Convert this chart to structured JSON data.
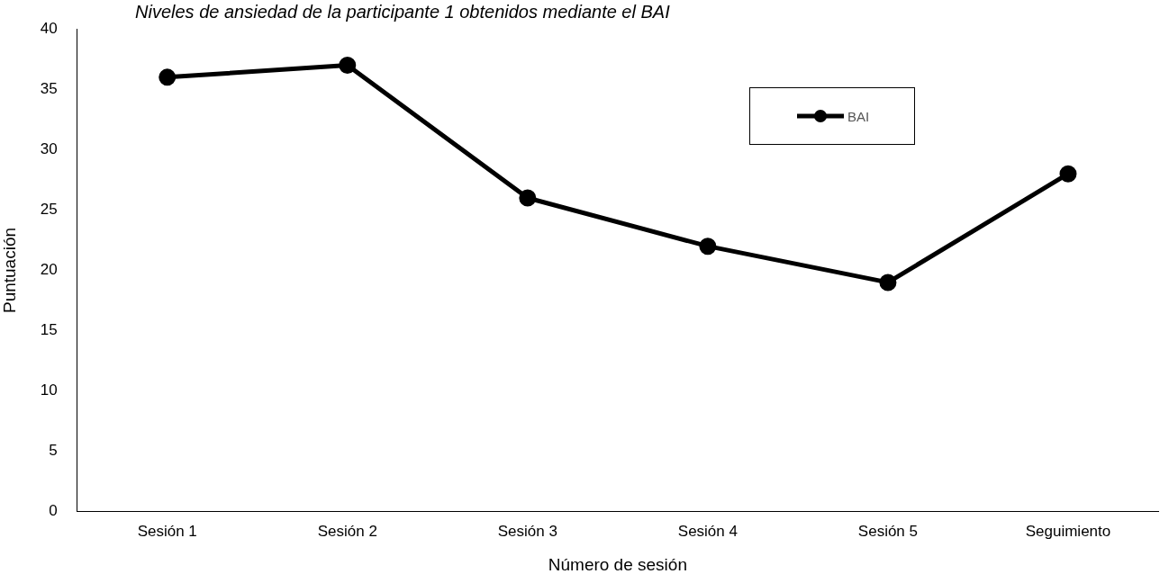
{
  "chart_data": {
    "type": "line",
    "title": "Niveles de ansiedad de la participante 1 obtenidos mediante el BAI",
    "xlabel": "Número de sesión",
    "ylabel": "Puntuación",
    "categories": [
      "Sesión 1",
      "Sesión 2",
      "Sesión 3",
      "Sesión 4",
      "Sesión 5",
      "Seguimiento"
    ],
    "series": [
      {
        "name": "BAI",
        "color": "#000000",
        "values": [
          36,
          37,
          26,
          22,
          19,
          28
        ]
      }
    ],
    "ylim": [
      0,
      40
    ],
    "yticks": [
      0,
      5,
      10,
      15,
      20,
      25,
      30,
      35,
      40
    ],
    "grid": false,
    "legend": "top right",
    "marker": "circle",
    "line_style": "solid"
  }
}
